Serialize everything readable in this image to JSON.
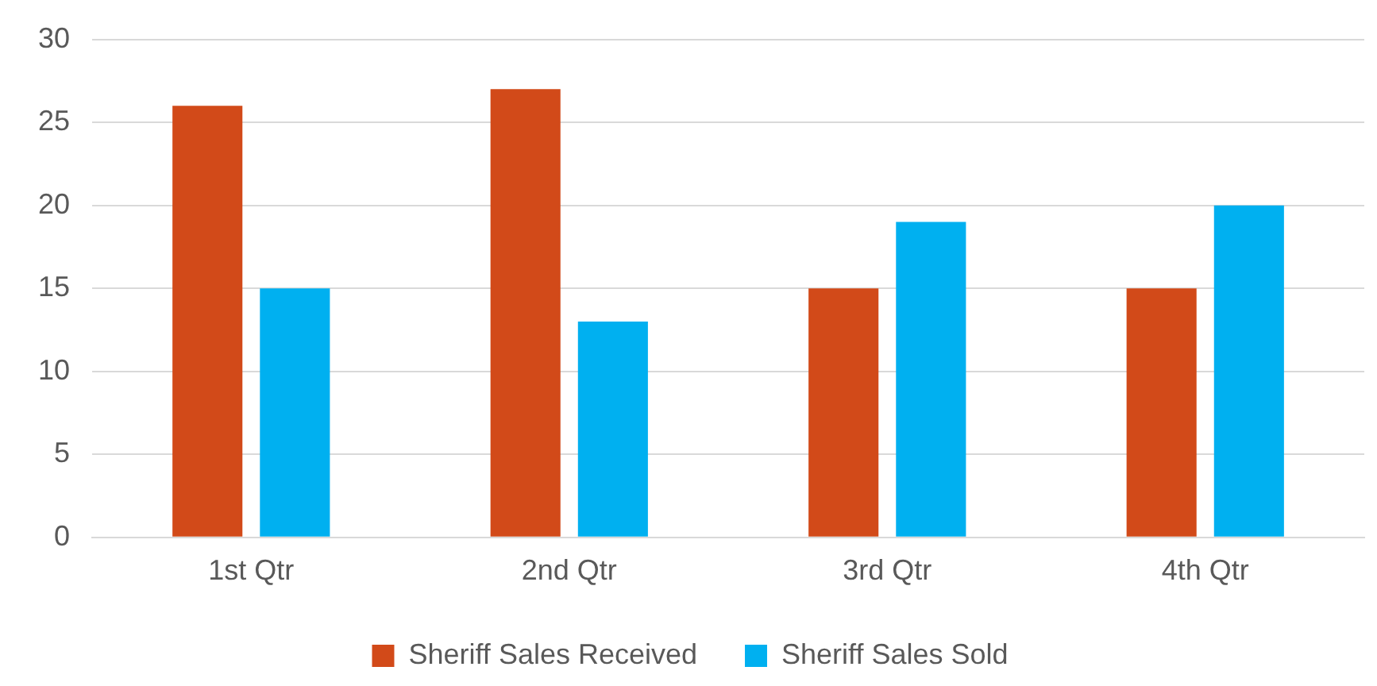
{
  "chart_data": {
    "type": "bar",
    "categories": [
      "1st Qtr",
      "2nd Qtr",
      "3rd Qtr",
      "4th Qtr"
    ],
    "series": [
      {
        "name": "Sheriff Sales Received",
        "color": "#d24a19",
        "values": [
          26,
          27,
          15,
          15
        ]
      },
      {
        "name": "Sheriff Sales Sold",
        "color": "#00b0f0",
        "values": [
          15,
          13,
          19,
          20
        ]
      }
    ],
    "ylim": [
      0,
      30
    ],
    "yticks": [
      0,
      5,
      10,
      15,
      20,
      25,
      30
    ],
    "grid": "y",
    "legend": "bottom"
  }
}
